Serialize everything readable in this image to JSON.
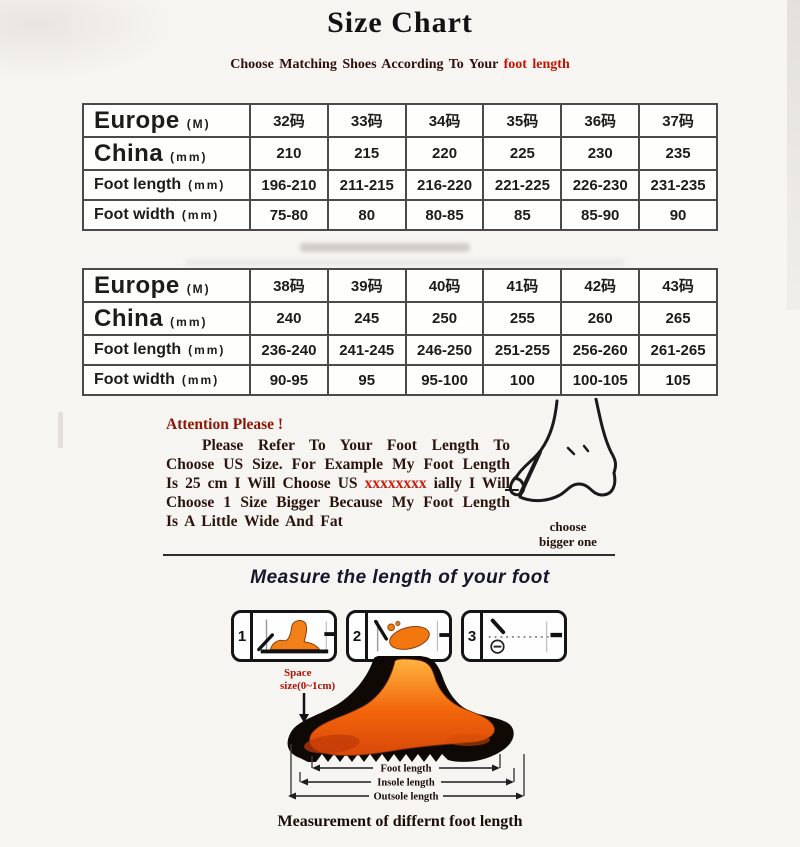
{
  "header": {
    "title": "Size Chart",
    "subtitle_main": "Choose Matching Shoes According To Your ",
    "subtitle_highlight": "foot length"
  },
  "size_tables": [
    {
      "rows": [
        {
          "label": "Europe",
          "unit": "(M)",
          "values": [
            "32码",
            "33码",
            "34码",
            "35码",
            "36码",
            "37码"
          ]
        },
        {
          "label": "China",
          "unit": "(mm)",
          "values": [
            "210",
            "215",
            "220",
            "225",
            "230",
            "235"
          ]
        },
        {
          "label": "Foot length",
          "unit": "(mm)",
          "values": [
            "196-210",
            "211-215",
            "216-220",
            "221-225",
            "226-230",
            "231-235"
          ]
        },
        {
          "label": "Foot width",
          "unit": "(mm)",
          "values": [
            "75-80",
            "80",
            "80-85",
            "85",
            "85-90",
            "90"
          ]
        }
      ]
    },
    {
      "rows": [
        {
          "label": "Europe",
          "unit": "(M)",
          "values": [
            "38码",
            "39码",
            "40码",
            "41码",
            "42码",
            "43码"
          ]
        },
        {
          "label": "China",
          "unit": "(mm)",
          "values": [
            "240",
            "245",
            "250",
            "255",
            "260",
            "265"
          ]
        },
        {
          "label": "Foot length",
          "unit": "(mm)",
          "values": [
            "236-240",
            "241-245",
            "246-250",
            "251-255",
            "256-260",
            "261-265"
          ]
        },
        {
          "label": "Foot width",
          "unit": "(mm)",
          "values": [
            "90-95",
            "95",
            "95-100",
            "100",
            "100-105",
            "105"
          ]
        }
      ]
    }
  ],
  "attention": {
    "heading": "Attention Please !",
    "body_part1": "Please Refer To Your Foot Length To Choose US Size. For Example My Foot Length Is 25 cm I Will Choose US ",
    "body_redacted": "xxxxxxxx",
    "body_part2": " ially I Will Choose 1 Size Bigger Because My Foot Length Is A Little Wide And Fat",
    "side_note_line1": "choose",
    "side_note_line2": "bigger one"
  },
  "measure_section": {
    "heading": "Measure the length of your foot",
    "steps": [
      {
        "number": "1"
      },
      {
        "number": "2"
      },
      {
        "number": "3"
      }
    ]
  },
  "foot_diagram": {
    "space_label_line1": "Space",
    "space_label_line2": "size(0~1cm)",
    "measurements": [
      "Foot length",
      "Insole length",
      "Outsole length"
    ],
    "caption": "Measurement of differnt foot length"
  },
  "colors": {
    "highlight_red": "#c41200",
    "attention_maroon": "#8c1605",
    "foot_orange": "#f2640a",
    "table_border": "#4a4a48"
  }
}
